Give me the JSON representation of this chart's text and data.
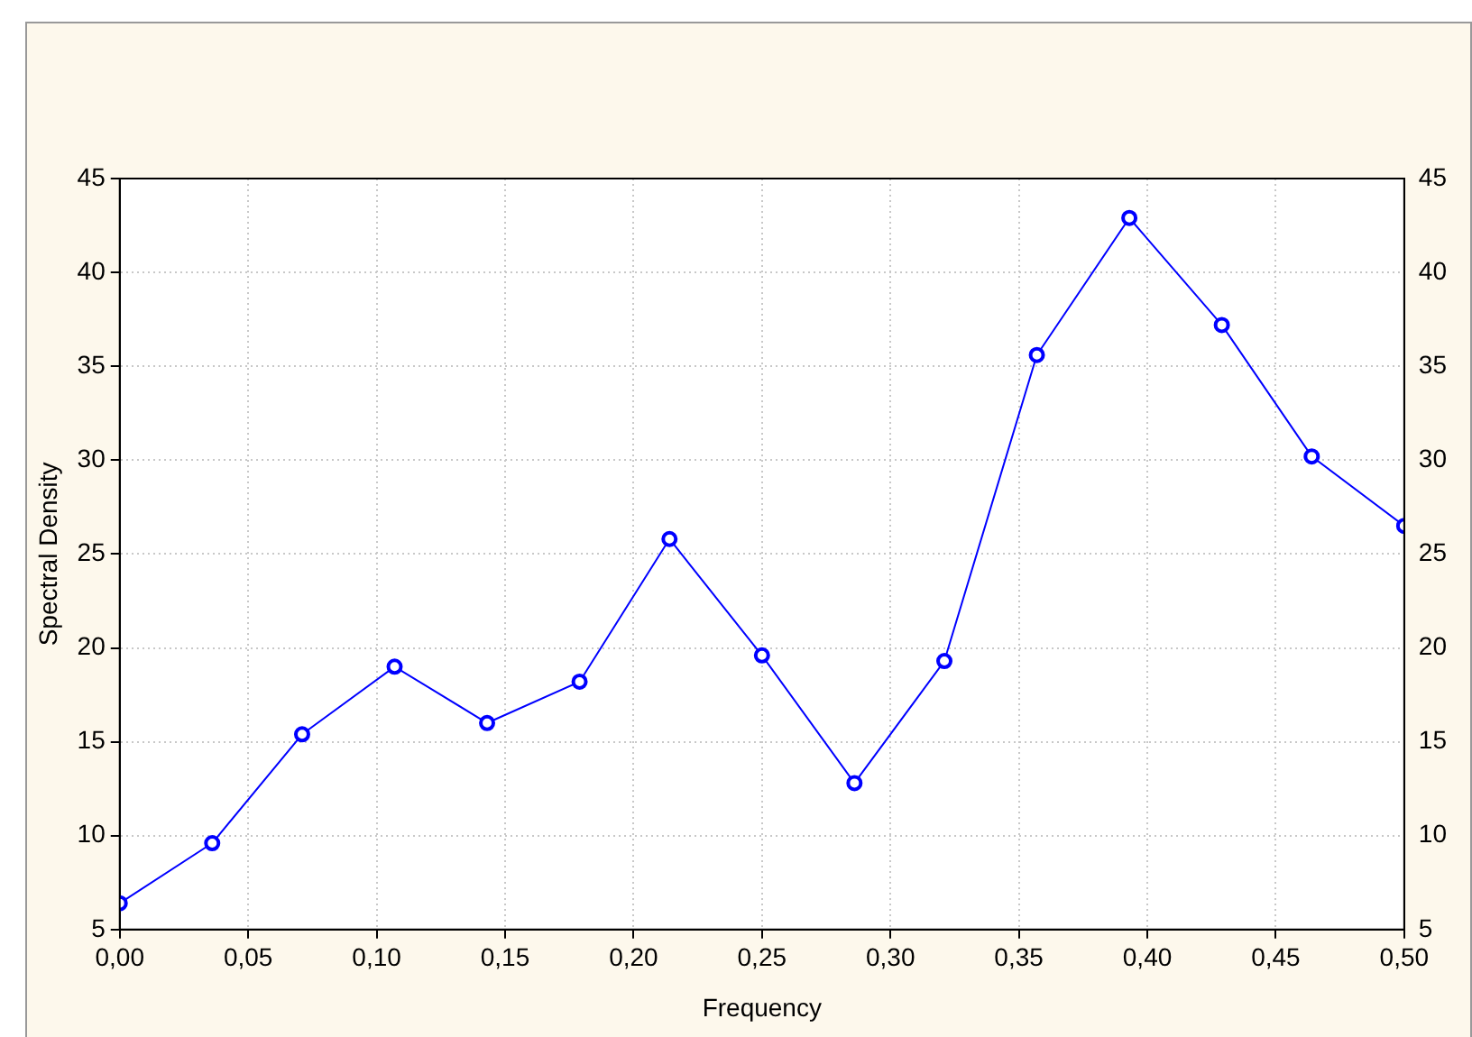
{
  "chart_data": {
    "type": "line",
    "xlabel": "Frequency",
    "ylabel": "Spectral Density",
    "x": [
      0,
      0.036,
      0.071,
      0.107,
      0.143,
      0.179,
      0.214,
      0.25,
      0.286,
      0.321,
      0.357,
      0.393,
      0.429,
      0.464,
      0.5
    ],
    "series": [
      {
        "color": "#0000ff",
        "values": [
          6.4,
          9.6,
          15.4,
          19.0,
          16.0,
          18.2,
          25.8,
          19.6,
          12.8,
          19.3,
          35.6,
          42.9,
          37.2,
          30.2,
          26.5
        ]
      }
    ],
    "xlim": [
      0,
      0.5
    ],
    "xticks": [
      {
        "value": 0,
        "label": "0,00"
      },
      {
        "value": 0.05,
        "label": "0,05"
      },
      {
        "value": 0.1,
        "label": "0,10"
      },
      {
        "value": 0.15,
        "label": "0,15"
      },
      {
        "value": 0.2,
        "label": "0,20"
      },
      {
        "value": 0.25,
        "label": "0,25"
      },
      {
        "value": 0.3,
        "label": "0,30"
      },
      {
        "value": 0.35,
        "label": "0,35"
      },
      {
        "value": 0.4,
        "label": "0,40"
      },
      {
        "value": 0.45,
        "label": "0,45"
      },
      {
        "value": 0.5,
        "label": "0,50"
      }
    ],
    "ylim": [
      5,
      45
    ],
    "yticks": [
      5,
      10,
      15,
      20,
      25,
      30,
      35,
      40,
      45
    ],
    "y2lim": [
      5,
      45
    ],
    "y2ticks": [
      5,
      10,
      15,
      20,
      25,
      30,
      35,
      40,
      45
    ],
    "grid": true,
    "marker": "circle",
    "line_style": "solid",
    "legend": false
  }
}
